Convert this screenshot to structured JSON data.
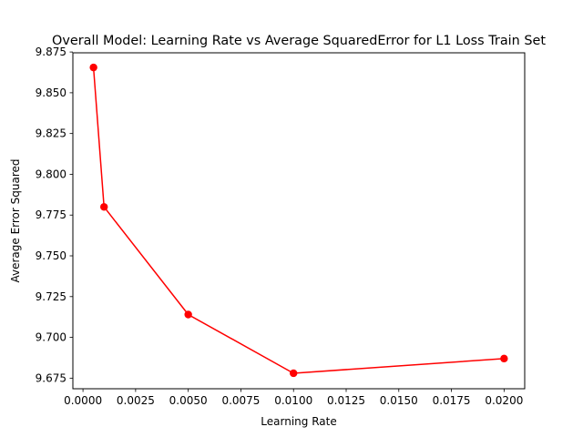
{
  "chart_data": {
    "type": "line",
    "title": "Overall Model: Learning Rate vs Average SquaredError for L1 Loss Train Set",
    "xlabel": "Learning Rate",
    "ylabel": "Average Error Squared",
    "xlim": [
      -0.00048,
      0.02098
    ],
    "ylim": [
      9.6685,
      9.8745
    ],
    "x_ticks": [
      "0.0000",
      "0.0025",
      "0.0050",
      "0.0075",
      "0.0100",
      "0.0125",
      "0.0150",
      "0.0175",
      "0.0200"
    ],
    "x_tick_values": [
      0.0,
      0.0025,
      0.005,
      0.0075,
      0.01,
      0.0125,
      0.015,
      0.0175,
      0.02
    ],
    "y_ticks": [
      "9.675",
      "9.700",
      "9.725",
      "9.750",
      "9.775",
      "9.800",
      "9.825",
      "9.850",
      "9.875"
    ],
    "y_tick_values": [
      9.675,
      9.7,
      9.725,
      9.75,
      9.775,
      9.8,
      9.825,
      9.85,
      9.875
    ],
    "grid": false,
    "series": [
      {
        "color": "#ff0000",
        "marker": "circle",
        "x": [
          0.0005,
          0.001,
          0.005,
          0.01,
          0.02
        ],
        "y": [
          9.8655,
          9.78,
          9.714,
          9.678,
          9.687
        ]
      }
    ]
  }
}
